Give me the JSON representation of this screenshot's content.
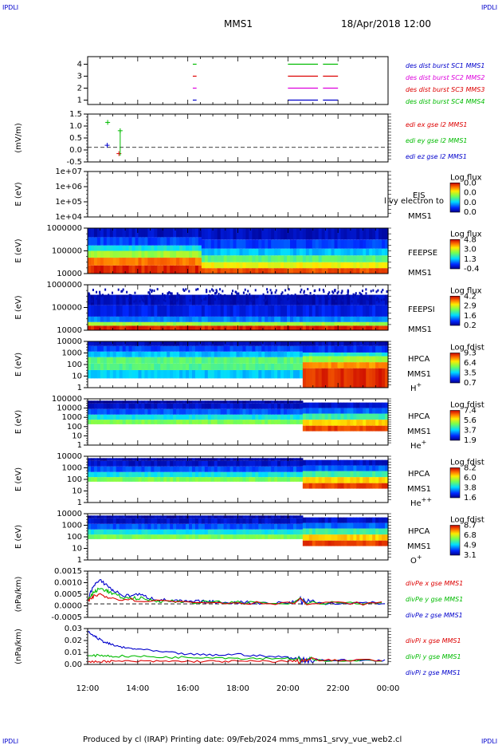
{
  "corners": {
    "tl": "IPDLI",
    "tr": "IPDLI",
    "bl": "IPDLI",
    "br": "IPDLI"
  },
  "header": {
    "title": "MMS1",
    "date": "18/Apr/2018 12:00"
  },
  "footer": {
    "text": "Produced by cl (IRAP)   Printing date: 09/Feb/2024   mms_mms1_srvy_vue_web2.cl"
  },
  "colors": {
    "mms1": "#0000cc",
    "mms2": "#dd00dd",
    "mms3": "#dd0000",
    "mms4": "#00bb00",
    "x": "#dd0000",
    "y": "#00bb00",
    "z": "#0000cc"
  },
  "chart_data": {
    "type": "multi-panel time series",
    "x_ticks": [
      "12:00",
      "14:00",
      "16:00",
      "18:00",
      "20:00",
      "22:00",
      "00:00"
    ],
    "x_range": [
      "2018-04-18T12:00",
      "2018-04-19T00:00"
    ],
    "panels": [
      {
        "id": "burst",
        "type": "line",
        "yticks": [
          "4",
          "3",
          "2",
          "1"
        ],
        "ylim": [
          0.5,
          4.5
        ],
        "legend": [
          "des dist burst SC1 MMS1",
          "des dist burst SC2 MMS2",
          "des dist burst SC3 MMS3",
          "des dist burst SC4 MMS4"
        ],
        "series": [
          {
            "sc": 4,
            "segments": [
              [
                16.2,
                16.35
              ],
              [
                20.0,
                21.2
              ],
              [
                21.4,
                22.0
              ]
            ]
          },
          {
            "sc": 3,
            "segments": [
              [
                16.2,
                16.35
              ],
              [
                20.0,
                21.2
              ],
              [
                21.4,
                22.0
              ]
            ]
          },
          {
            "sc": 2,
            "segments": [
              [
                16.2,
                16.35
              ],
              [
                20.0,
                21.2
              ],
              [
                21.4,
                22.0
              ]
            ]
          },
          {
            "sc": 1,
            "segments": [
              [
                16.2,
                16.35
              ],
              [
                20.0,
                21.2
              ],
              [
                21.4,
                22.0
              ]
            ]
          }
        ]
      },
      {
        "id": "edi",
        "type": "line",
        "ylabel": "(mV/m)",
        "yticks": [
          "1.5",
          "1.0",
          "0.5",
          "0.0",
          "-0.5"
        ],
        "ylim": [
          -0.7,
          1.6
        ],
        "legend": [
          "edi ex gse l2 MMS1",
          "edi ey gse l2 MMS1",
          "edi ez gse l2 MMS1"
        ],
        "points": [
          {
            "c": "y",
            "t": 12.8,
            "v": 1.2
          },
          {
            "c": "z",
            "t": 12.78,
            "v": 0.1
          },
          {
            "c": "x",
            "t": 13.25,
            "v": -0.3
          },
          {
            "c": "y",
            "t": 13.3,
            "v": 0.8
          }
        ]
      },
      {
        "id": "eis",
        "type": "heatmap",
        "ylabel": "E (eV)",
        "yticks": [
          "1e+07",
          "1e+06",
          "1e+05",
          "1e+04"
        ],
        "label": "EIS",
        "overlay": "l vy electron to",
        "sublabel": "MMS1",
        "cbar_title": "Log flux",
        "cbar": [
          "0.0",
          "0.0",
          "0.0",
          "0.0"
        ]
      },
      {
        "id": "feepse",
        "type": "heatmap",
        "ylabel": "E (eV)",
        "yticks": [
          "1000000",
          "100000",
          "10000"
        ],
        "label": "FEEPSE",
        "sublabel": "MMS1",
        "cbar_title": "Log flux",
        "cbar": [
          "4.8",
          "3.0",
          "1.3",
          "-0.4"
        ]
      },
      {
        "id": "feepsi",
        "type": "heatmap",
        "ylabel": "E (eV)",
        "yticks": [
          "1000000",
          "100000",
          "10000"
        ],
        "label": "FEEPSI",
        "sublabel": "MMS1",
        "cbar_title": "Log flux",
        "cbar": [
          "4.2",
          "2.9",
          "1.6",
          "0.2"
        ]
      },
      {
        "id": "hpca_h",
        "type": "heatmap",
        "ylabel": "E (eV)",
        "yticks": [
          "10000",
          "1000",
          "100",
          "10",
          "1"
        ],
        "label": "HPCA",
        "sublabel": "MMS1",
        "species": "H",
        "charge": "+",
        "cbar_title": "Log fdist",
        "cbar": [
          "9.3",
          "6.4",
          "3.5",
          "0.7"
        ]
      },
      {
        "id": "hpca_he",
        "type": "heatmap",
        "ylabel": "E (eV)",
        "yticks": [
          "100000",
          "10000",
          "1000",
          "100",
          "10",
          "1"
        ],
        "label": "HPCA",
        "sublabel": "MMS1",
        "species": "He",
        "charge": "+",
        "cbar_title": "Log fdist",
        "cbar": [
          "7.4",
          "5.6",
          "3.7",
          "1.9"
        ]
      },
      {
        "id": "hpca_hepp",
        "type": "heatmap",
        "ylabel": "E (eV)",
        "yticks": [
          "10000",
          "1000",
          "100",
          "10",
          "1"
        ],
        "label": "HPCA",
        "sublabel": "MMS1",
        "species": "He",
        "charge": "++",
        "cbar_title": "Log fdist",
        "cbar": [
          "8.2",
          "6.0",
          "3.8",
          "1.6"
        ]
      },
      {
        "id": "hpca_o",
        "type": "heatmap",
        "ylabel": "E (eV)",
        "yticks": [
          "10000",
          "1000",
          "100",
          "10",
          "1"
        ],
        "label": "HPCA",
        "sublabel": "MMS1",
        "species": "O",
        "charge": "+",
        "cbar_title": "Log fdist",
        "cbar": [
          "8.7",
          "6.8",
          "4.9",
          "3.1"
        ]
      },
      {
        "id": "divpe",
        "type": "line",
        "ylabel": "(nPa/km)",
        "yticks": [
          "0.0015",
          "0.0010",
          "0.0005",
          "0.0000",
          "-0.0005"
        ],
        "ylim": [
          -0.0007,
          0.0017
        ],
        "legend": [
          "divPe x gse MMS1",
          "divPe y gse MMS1",
          "divPe z gse MMS1"
        ],
        "series": [
          {
            "c": "z",
            "t": [
              12.0,
              12.25,
              12.5,
              12.75,
              13.0,
              13.5,
              14.0,
              14.5,
              15.0,
              15.5,
              16.0,
              16.5,
              17.0,
              18.0,
              19.0,
              20.0,
              20.5,
              21.0,
              22.0,
              23.0,
              24.0
            ],
            "v": [
              0.0002,
              0.001,
              0.0012,
              0.001,
              0.0007,
              0.0004,
              0.0005,
              0.0003,
              0.0002,
              0.00015,
              0.0001,
              0.00012,
              0.0001,
              8e-05,
              6e-05,
              5e-05,
              0.0002,
              5e-05,
              5e-05,
              4e-05,
              4e-05
            ]
          },
          {
            "c": "y",
            "t": [
              12.0,
              12.25,
              12.5,
              12.75,
              13.0,
              13.5,
              14.0,
              14.5,
              15.0,
              16.0,
              17.0,
              18.0,
              20.0,
              22.0,
              24.0
            ],
            "v": [
              0.0002,
              0.0006,
              0.0008,
              0.0007,
              0.0005,
              0.0003,
              0.0003,
              0.0002,
              0.00015,
              0.0001,
              8e-05,
              7e-05,
              5e-05,
              4e-05,
              3e-05
            ]
          },
          {
            "c": "x",
            "t": [
              12.0,
              12.25,
              12.5,
              13.0,
              14.0,
              16.0,
              18.0,
              20.0,
              22.0,
              24.0
            ],
            "v": [
              0.0001,
              0.0004,
              0.0005,
              0.0003,
              0.0002,
              0.0001,
              6e-05,
              5e-05,
              3e-05,
              2e-05
            ]
          }
        ]
      },
      {
        "id": "divpi",
        "type": "line",
        "ylabel": "(nPa/km)",
        "yticks": [
          "0.03",
          "0.02",
          "0.01",
          "0.00"
        ],
        "ylim": [
          -0.004,
          0.031
        ],
        "legend": [
          "divPi x gse MMS1",
          "divPi y gse MMS1",
          "divPi z gse MMS1"
        ],
        "series": [
          {
            "c": "z",
            "t": [
              12.0,
              12.25,
              12.5,
              12.75,
              13.0,
              13.5,
              14.0,
              15.0,
              16.0,
              17.0,
              18.0,
              19.0,
              20.0,
              20.5,
              21.0,
              22.0,
              23.0,
              24.0
            ],
            "v": [
              0.028,
              0.024,
              0.02,
              0.017,
              0.015,
              0.012,
              0.011,
              0.008,
              0.006,
              0.005,
              0.006,
              0.004,
              0.003,
              0.001,
              0.0005,
              0.0,
              0.0,
              0.0
            ]
          },
          {
            "c": "y",
            "t": [
              12.0,
              12.5,
              13.0,
              14.0,
              15.0,
              16.0,
              17.0,
              18.0,
              19.0,
              20.0,
              20.5,
              21.0,
              22.0,
              24.0
            ],
            "v": [
              0.004,
              0.005,
              0.004,
              0.004,
              0.003,
              0.003,
              0.003,
              0.002,
              0.002,
              0.002,
              0.0,
              0.0,
              0.0,
              0.0
            ]
          },
          {
            "c": "x",
            "t": [
              12.0,
              12.5,
              13.0,
              14.0,
              15.0,
              16.0,
              17.0,
              18.0,
              19.0,
              20.0,
              20.5,
              21.0,
              22.0,
              24.0
            ],
            "v": [
              -0.002,
              -0.001,
              -0.001,
              -0.001,
              -0.001,
              -0.001,
              -0.001,
              -0.001,
              -0.001,
              -0.001,
              0.0,
              0.0,
              0.0,
              0.0
            ]
          }
        ]
      }
    ]
  }
}
